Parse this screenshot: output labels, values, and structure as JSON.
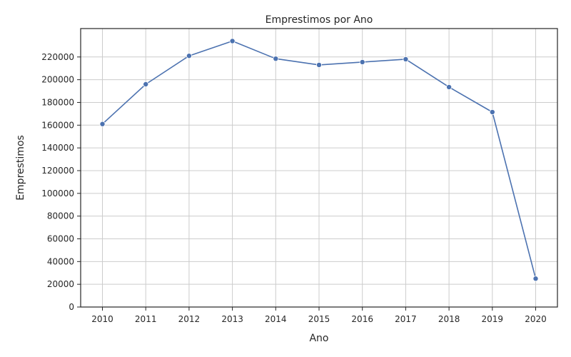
{
  "chart_data": {
    "type": "line",
    "title": "Emprestimos por Ano",
    "xlabel": "Ano",
    "ylabel": "Emprestimos",
    "x": [
      "2010",
      "2011",
      "2012",
      "2013",
      "2014",
      "2015",
      "2016",
      "2017",
      "2018",
      "2019",
      "2020"
    ],
    "series": [
      {
        "values": [
          161000,
          196000,
          221000,
          234000,
          218500,
          213000,
          215500,
          218000,
          193500,
          171500,
          25000
        ],
        "color": "#4c72b0",
        "marker": "circle"
      }
    ],
    "yticks": [
      0,
      20000,
      40000,
      60000,
      80000,
      100000,
      120000,
      140000,
      160000,
      180000,
      200000,
      220000
    ],
    "ylim": [
      0,
      245000
    ],
    "grid": true,
    "legend": "none"
  }
}
